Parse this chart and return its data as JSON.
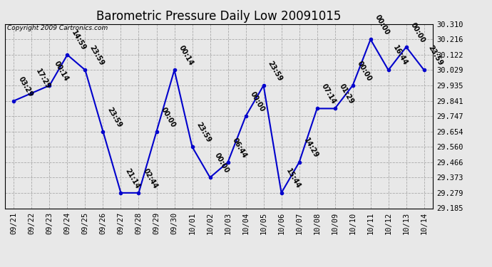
{
  "title": "Barometric Pressure Daily Low 20091015",
  "copyright": "Copyright 2009 Cartronics.com",
  "x_labels": [
    "09/21",
    "09/22",
    "09/23",
    "09/24",
    "09/25",
    "09/26",
    "09/27",
    "09/28",
    "09/29",
    "09/30",
    "10/01",
    "10/02",
    "10/03",
    "10/04",
    "10/05",
    "10/06",
    "10/07",
    "10/08",
    "10/09",
    "10/10",
    "10/11",
    "10/12",
    "10/13",
    "10/14"
  ],
  "y_values": [
    29.841,
    29.888,
    29.935,
    30.122,
    30.029,
    29.654,
    29.279,
    29.279,
    29.654,
    30.029,
    29.56,
    29.373,
    29.466,
    29.747,
    29.935,
    29.279,
    29.466,
    29.794,
    29.794,
    29.935,
    30.216,
    30.029,
    30.17,
    30.029
  ],
  "point_labels": [
    "03:29",
    "17:29",
    "00:14",
    "14:59",
    "23:59",
    "23:59",
    "21:14",
    "02:44",
    "00:00",
    "00:14",
    "23:59",
    "00:00",
    "06:44",
    "00:00",
    "23:59",
    "15:44",
    "14:29",
    "07:14",
    "01:29",
    "00:00",
    "00:00",
    "16:44",
    "00:00",
    "23:59"
  ],
  "ylim_min": 29.185,
  "ylim_max": 30.31,
  "y_ticks": [
    29.185,
    29.279,
    29.373,
    29.466,
    29.56,
    29.654,
    29.747,
    29.841,
    29.935,
    30.029,
    30.122,
    30.216,
    30.31
  ],
  "line_color": "#0000cc",
  "marker_color": "#0000cc",
  "marker": "o",
  "marker_size": 3,
  "fig_bg_color": "#e8e8e8",
  "plot_bg_color": "#e8e8e8",
  "grid_color": "#aaaaaa",
  "title_fontsize": 12,
  "tick_fontsize": 7.5,
  "annotation_fontsize": 7,
  "annotation_rotation": -60
}
